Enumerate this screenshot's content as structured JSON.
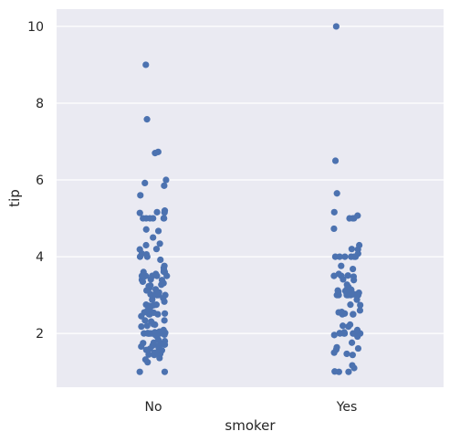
{
  "chart_data": {
    "type": "scatter",
    "subtype": "strip",
    "xlabel": "smoker",
    "ylabel": "tip",
    "categories": [
      "No",
      "Yes"
    ],
    "ylim": [
      0.6,
      10.45
    ],
    "yticks": [
      2,
      4,
      6,
      8,
      10
    ],
    "grid": true,
    "colors": {
      "background": "#eaeaf2",
      "grid": "#ffffff",
      "point": "#4c72b0",
      "text": "#262626"
    },
    "series": [
      {
        "category": "No",
        "values": [
          1.0,
          1.0,
          1.25,
          1.32,
          1.36,
          1.44,
          1.45,
          1.47,
          1.48,
          1.5,
          1.5,
          1.5,
          1.56,
          1.57,
          1.6,
          1.61,
          1.63,
          1.66,
          1.67,
          1.68,
          1.71,
          1.73,
          1.75,
          1.76,
          1.8,
          1.83,
          1.92,
          1.96,
          1.97,
          1.98,
          2.0,
          2.0,
          2.0,
          2.0,
          2.0,
          2.0,
          2.0,
          2.01,
          2.02,
          2.03,
          2.05,
          2.09,
          2.18,
          2.2,
          2.23,
          2.24,
          2.31,
          2.34,
          2.34,
          2.45,
          2.5,
          2.5,
          2.5,
          2.52,
          2.54,
          2.55,
          2.56,
          2.6,
          2.64,
          2.71,
          2.72,
          2.74,
          2.75,
          2.75,
          2.83,
          2.88,
          2.92,
          3.0,
          3.0,
          3.0,
          3.0,
          3.0,
          3.0,
          3.02,
          3.07,
          3.12,
          3.15,
          3.18,
          3.23,
          3.25,
          3.27,
          3.31,
          3.35,
          3.39,
          3.4,
          3.41,
          3.48,
          3.5,
          3.5,
          3.5,
          3.5,
          3.5,
          3.5,
          3.55,
          3.6,
          3.6,
          3.61,
          3.66,
          3.71,
          3.76,
          3.92,
          4.0,
          4.0,
          4.06,
          4.08,
          4.19,
          4.2,
          4.3,
          4.34,
          4.5,
          4.67,
          4.71,
          5.0,
          5.0,
          5.0,
          5.0,
          5.0,
          5.0,
          5.14,
          5.15,
          5.16,
          5.2,
          5.6,
          5.85,
          5.92,
          6.0,
          6.7,
          6.73,
          7.58,
          9.0
        ]
      },
      {
        "category": "Yes",
        "values": [
          1.0,
          1.0,
          1.01,
          1.1,
          1.17,
          1.44,
          1.47,
          1.5,
          1.58,
          1.61,
          1.64,
          1.76,
          1.92,
          1.96,
          2.0,
          2.0,
          2.0,
          2.0,
          2.0,
          2.0,
          2.0,
          2.0,
          2.0,
          2.0,
          2.01,
          2.03,
          2.09,
          2.18,
          2.2,
          2.23,
          2.5,
          2.5,
          2.5,
          2.52,
          2.55,
          2.56,
          2.6,
          2.74,
          2.75,
          2.88,
          3.0,
          3.0,
          3.0,
          3.0,
          3.0,
          3.0,
          3.02,
          3.06,
          3.07,
          3.09,
          3.11,
          3.12,
          3.14,
          3.18,
          3.21,
          3.27,
          3.39,
          3.41,
          3.48,
          3.5,
          3.5,
          3.51,
          3.55,
          3.68,
          3.76,
          4.0,
          4.0,
          4.0,
          4.0,
          4.0,
          4.0,
          4.08,
          4.19,
          4.2,
          4.3,
          4.73,
          5.0,
          5.0,
          5.0,
          5.07,
          5.16,
          5.65,
          6.5,
          10.0
        ]
      }
    ]
  }
}
